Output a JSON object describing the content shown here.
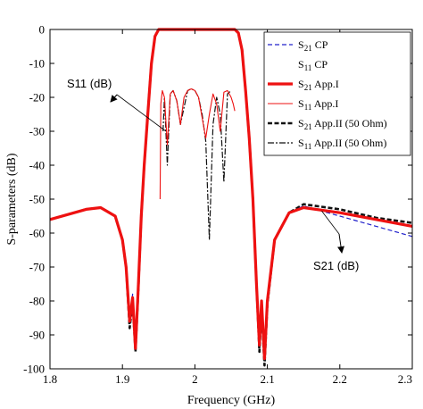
{
  "chart_data": {
    "type": "line",
    "title": "",
    "xlabel": "Frequency (GHz)",
    "ylabel": "S-parameters (dB)",
    "xlim": [
      1.8,
      2.3
    ],
    "ylim": [
      -100,
      0
    ],
    "xticks": [
      "1.8",
      "1.9",
      "2",
      "2.1",
      "2.2",
      "2.3"
    ],
    "yticks": [
      "0",
      "-10",
      "-20",
      "-30",
      "-40",
      "-50",
      "-60",
      "-70",
      "-80",
      "-90",
      "-100"
    ],
    "grid": false,
    "legend_position": "top-right",
    "annotations": [
      {
        "text": "S11 (dB)",
        "points_to": [
          1.96,
          -30
        ]
      },
      {
        "text": "S21 (dB)",
        "points_to": [
          2.175,
          -53.5
        ]
      }
    ],
    "series": [
      {
        "name_main": "S",
        "name_sub": "21",
        "name_rest": " CP",
        "color": "#2222cc",
        "style": "dashed",
        "x": [
          1.8,
          1.85,
          1.87,
          1.89,
          1.9,
          1.905,
          1.91,
          1.914,
          1.918,
          1.922,
          1.926,
          1.93,
          1.935,
          1.94,
          1.945,
          1.95,
          1.955,
          2.0,
          2.045,
          2.05,
          2.055,
          2.06,
          2.065,
          2.07,
          2.075,
          2.08,
          2.085,
          2.089,
          2.092,
          2.096,
          2.1,
          2.11,
          2.13,
          2.15,
          2.2,
          2.25,
          2.3
        ],
        "y": [
          -56,
          -53,
          -52.5,
          -55,
          -62,
          -70,
          -85,
          -78,
          -93,
          -75,
          -55,
          -40,
          -25,
          -10,
          -2,
          0,
          0,
          0,
          0,
          0,
          0,
          -1,
          -6,
          -18,
          -32,
          -50,
          -75,
          -92,
          -80,
          -97,
          -80,
          -62,
          -54,
          -52,
          -55,
          -58,
          -61
        ]
      },
      {
        "name_main": "S",
        "name_sub": "11",
        "name_rest": " CP",
        "color": "#444444",
        "style": "none",
        "x": [],
        "y": []
      },
      {
        "name_main": "S",
        "name_sub": "21",
        "name_rest": " App.I",
        "color": "#ee1111",
        "style": "solid-thick",
        "x": [
          1.8,
          1.85,
          1.87,
          1.89,
          1.9,
          1.905,
          1.91,
          1.914,
          1.918,
          1.922,
          1.926,
          1.93,
          1.935,
          1.94,
          1.945,
          1.95,
          1.955,
          2.0,
          2.045,
          2.05,
          2.055,
          2.06,
          2.065,
          2.07,
          2.075,
          2.08,
          2.085,
          2.089,
          2.092,
          2.096,
          2.1,
          2.11,
          2.13,
          2.15,
          2.2,
          2.25,
          2.3
        ],
        "y": [
          -56,
          -53,
          -52.5,
          -55,
          -62,
          -70,
          -86,
          -79,
          -94,
          -75,
          -55,
          -40,
          -25,
          -10,
          -2,
          0,
          0,
          0,
          0,
          0,
          0,
          -1,
          -6,
          -18,
          -32,
          -50,
          -75,
          -93,
          -80,
          -97,
          -80,
          -62,
          -54,
          -52.5,
          -54,
          -56,
          -58
        ]
      },
      {
        "name_main": "S",
        "name_sub": "11",
        "name_rest": " App.I",
        "color": "#ee1111",
        "style": "solid-thin",
        "x": [
          1.952,
          1.953,
          1.955,
          1.958,
          1.962,
          1.966,
          1.97,
          1.975,
          1.98,
          1.985,
          1.99,
          1.995,
          2.0,
          2.005,
          2.01,
          2.015,
          2.02,
          2.025,
          2.03,
          2.035,
          2.04,
          2.045,
          2.05,
          2.053,
          2.055
        ],
        "y": [
          -50,
          -22,
          -18,
          -20,
          -34,
          -19,
          -18,
          -21,
          -28,
          -20,
          -18,
          -17.5,
          -18,
          -20,
          -26,
          -32,
          -25,
          -19,
          -22,
          -30,
          -18.5,
          -18,
          -20,
          -22,
          -24
        ]
      },
      {
        "name_main": "S",
        "name_sub": "21",
        "name_rest": " App.II (50 Ohm)",
        "color": "#111111",
        "style": "dashed-thick",
        "x": [
          1.8,
          1.85,
          1.87,
          1.89,
          1.9,
          1.905,
          1.91,
          1.914,
          1.918,
          1.922,
          1.926,
          1.93,
          1.935,
          1.94,
          1.945,
          1.95,
          1.955,
          2.0,
          2.045,
          2.05,
          2.055,
          2.06,
          2.065,
          2.07,
          2.075,
          2.08,
          2.085,
          2.089,
          2.092,
          2.096,
          2.1,
          2.11,
          2.13,
          2.15,
          2.2,
          2.25,
          2.3
        ],
        "y": [
          -56,
          -53,
          -52.5,
          -55,
          -62,
          -70,
          -88,
          -80,
          -95,
          -76,
          -55,
          -40,
          -25,
          -10,
          -2,
          0,
          0,
          0,
          0,
          0,
          0,
          -1,
          -6,
          -18,
          -32,
          -50,
          -75,
          -95,
          -82,
          -99,
          -81,
          -62,
          -54,
          -51.5,
          -53,
          -55.5,
          -57
        ]
      },
      {
        "name_main": "S",
        "name_sub": "11",
        "name_rest": " App.II (50 Ohm)",
        "color": "#111111",
        "style": "dashdot",
        "x": [
          1.956,
          1.958,
          1.962,
          1.966,
          1.97,
          1.975,
          1.98,
          1.985,
          1.99,
          1.995,
          2.0,
          2.005,
          2.01,
          2.015,
          2.02,
          2.025,
          2.03,
          2.035,
          2.04,
          2.045,
          2.05
        ],
        "y": [
          -30,
          -20,
          -40,
          -19,
          -18,
          -21,
          -28,
          -23,
          -18,
          -17.5,
          -18,
          -20,
          -25,
          -33,
          -62,
          -28,
          -20,
          -25,
          -45,
          -19,
          -18
        ]
      }
    ]
  }
}
